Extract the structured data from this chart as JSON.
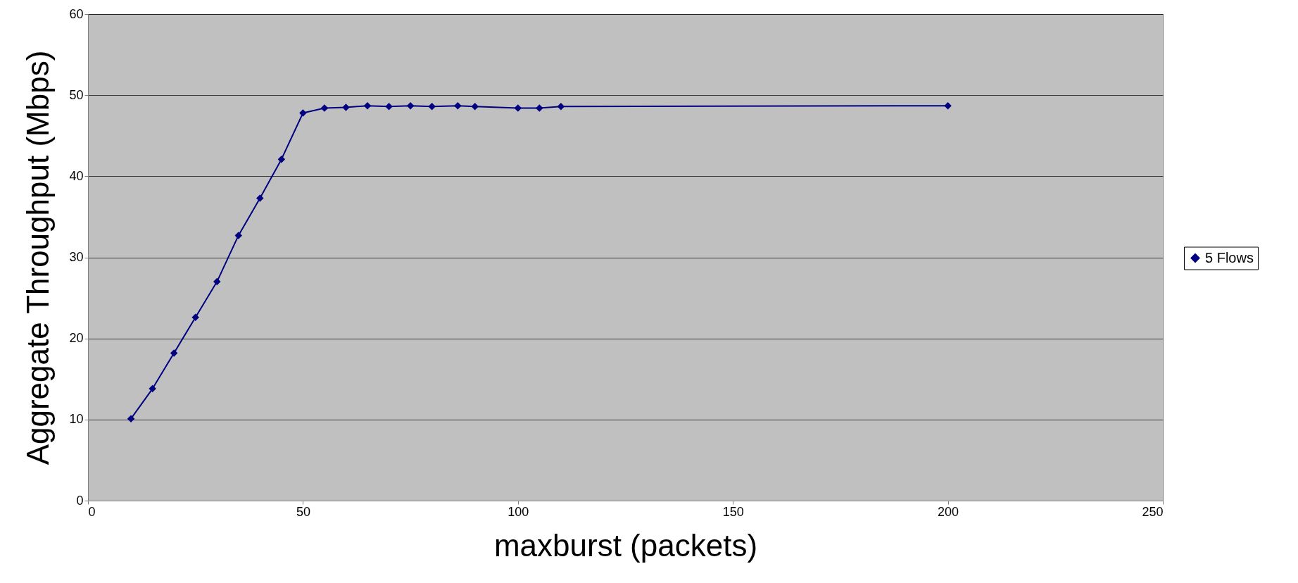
{
  "chart_data": {
    "type": "line",
    "xlabel": "maxburst (packets)",
    "ylabel": "Aggregate Throughput (Mbps)",
    "x": [
      10,
      15,
      20,
      25,
      30,
      35,
      40,
      45,
      50,
      55,
      60,
      65,
      70,
      75,
      80,
      86,
      90,
      100,
      105,
      110,
      200
    ],
    "series": [
      {
        "name": "5 Flows",
        "color": "#000080",
        "values": [
          10.1,
          13.8,
          18.2,
          22.6,
          27.0,
          32.7,
          37.3,
          42.1,
          47.8,
          48.4,
          48.5,
          48.7,
          48.6,
          48.7,
          48.6,
          48.7,
          48.6,
          48.4,
          48.4,
          48.6,
          48.7
        ]
      }
    ],
    "xlim": [
      0,
      250
    ],
    "xticks": [
      0,
      50,
      100,
      150,
      200,
      250
    ],
    "ylim": [
      0,
      60
    ],
    "yticks": [
      0,
      10,
      20,
      30,
      40,
      50,
      60
    ],
    "grid": "y",
    "legend": "right",
    "marker": "diamond",
    "line_style": "solid"
  }
}
